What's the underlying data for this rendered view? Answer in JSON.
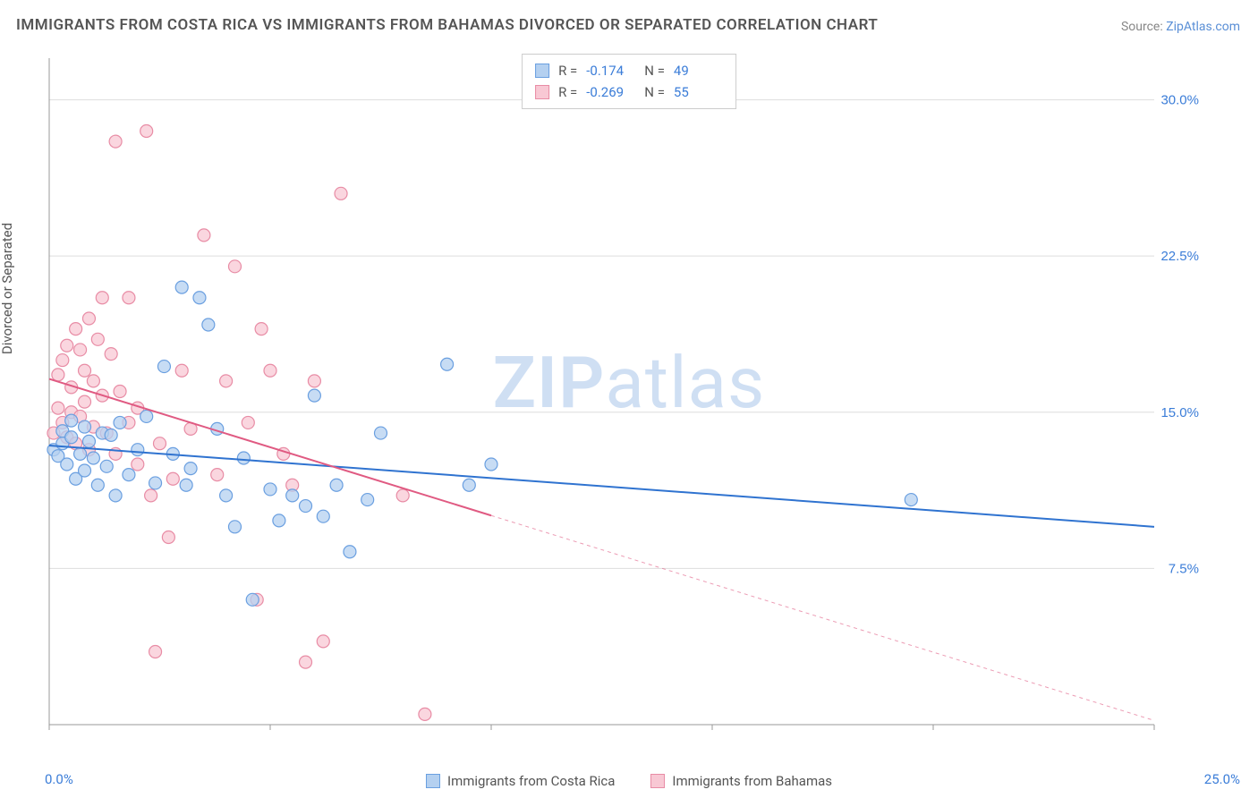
{
  "title": "IMMIGRANTS FROM COSTA RICA VS IMMIGRANTS FROM BAHAMAS DIVORCED OR SEPARATED CORRELATION CHART",
  "source_label": "Source: ",
  "source_value": "ZipAtlas.com",
  "y_axis_label": "Divorced or Separated",
  "watermark_bold": "ZIP",
  "watermark_light": "atlas",
  "chart": {
    "type": "scatter-with-regression",
    "background_color": "#ffffff",
    "plot_border_color": "#999999",
    "grid_color": "#dddddd",
    "xlim": [
      0,
      25
    ],
    "ylim": [
      0,
      32
    ],
    "x_origin_label": "0.0%",
    "x_max_label": "25.0%",
    "x_ticks": [
      0,
      5,
      10,
      15,
      20,
      25
    ],
    "y_ticks": [
      7.5,
      15.0,
      22.5,
      30.0
    ],
    "y_tick_labels": [
      "7.5%",
      "15.0%",
      "22.5%",
      "30.0%"
    ],
    "tick_label_color": "#3b7dd8",
    "tick_label_fontsize": 15,
    "marker_radius": 7,
    "marker_stroke_width": 1.2,
    "series": [
      {
        "id": "costa_rica",
        "label": "Immigrants from Costa Rica",
        "fill_color": "#b4d0f0",
        "stroke_color": "#6a9fe0",
        "r_value": "-0.174",
        "n_value": "49",
        "regression": {
          "x1": 0,
          "y1": 13.4,
          "x2": 25,
          "y2": 9.5,
          "solid_until_x": 25,
          "color": "#2f73d0",
          "width": 2
        },
        "points": [
          [
            0.1,
            13.2
          ],
          [
            0.2,
            12.9
          ],
          [
            0.3,
            13.5
          ],
          [
            0.3,
            14.1
          ],
          [
            0.4,
            12.5
          ],
          [
            0.5,
            13.8
          ],
          [
            0.5,
            14.6
          ],
          [
            0.6,
            11.8
          ],
          [
            0.7,
            13.0
          ],
          [
            0.8,
            14.3
          ],
          [
            0.8,
            12.2
          ],
          [
            0.9,
            13.6
          ],
          [
            1.0,
            12.8
          ],
          [
            1.1,
            11.5
          ],
          [
            1.2,
            14.0
          ],
          [
            1.3,
            12.4
          ],
          [
            1.4,
            13.9
          ],
          [
            1.5,
            11.0
          ],
          [
            1.6,
            14.5
          ],
          [
            1.8,
            12.0
          ],
          [
            2.0,
            13.2
          ],
          [
            2.2,
            14.8
          ],
          [
            2.4,
            11.6
          ],
          [
            2.6,
            17.2
          ],
          [
            2.8,
            13.0
          ],
          [
            3.0,
            21.0
          ],
          [
            3.2,
            12.3
          ],
          [
            3.4,
            20.5
          ],
          [
            3.6,
            19.2
          ],
          [
            3.8,
            14.2
          ],
          [
            4.0,
            11.0
          ],
          [
            4.2,
            9.5
          ],
          [
            4.4,
            12.8
          ],
          [
            4.6,
            6.0
          ],
          [
            5.0,
            11.3
          ],
          [
            5.2,
            9.8
          ],
          [
            5.5,
            11.0
          ],
          [
            5.8,
            10.5
          ],
          [
            6.0,
            15.8
          ],
          [
            6.2,
            10.0
          ],
          [
            6.5,
            11.5
          ],
          [
            6.8,
            8.3
          ],
          [
            7.2,
            10.8
          ],
          [
            7.5,
            14.0
          ],
          [
            9.0,
            17.3
          ],
          [
            9.5,
            11.5
          ],
          [
            10.0,
            12.5
          ],
          [
            19.5,
            10.8
          ],
          [
            3.1,
            11.5
          ]
        ]
      },
      {
        "id": "bahamas",
        "label": "Immigrants from Bahamas",
        "fill_color": "#f8c8d4",
        "stroke_color": "#e88ca5",
        "r_value": "-0.269",
        "n_value": "55",
        "regression": {
          "x1": 0,
          "y1": 16.6,
          "x2": 25,
          "y2": 0.2,
          "solid_until_x": 10,
          "color": "#e05a82",
          "width": 2
        },
        "points": [
          [
            0.1,
            14.0
          ],
          [
            0.2,
            15.2
          ],
          [
            0.2,
            16.8
          ],
          [
            0.3,
            14.5
          ],
          [
            0.3,
            17.5
          ],
          [
            0.4,
            13.8
          ],
          [
            0.4,
            18.2
          ],
          [
            0.5,
            15.0
          ],
          [
            0.5,
            16.2
          ],
          [
            0.6,
            13.5
          ],
          [
            0.6,
            19.0
          ],
          [
            0.7,
            14.8
          ],
          [
            0.7,
            18.0
          ],
          [
            0.8,
            15.5
          ],
          [
            0.8,
            17.0
          ],
          [
            0.9,
            13.2
          ],
          [
            0.9,
            19.5
          ],
          [
            1.0,
            14.3
          ],
          [
            1.0,
            16.5
          ],
          [
            1.1,
            18.5
          ],
          [
            1.2,
            15.8
          ],
          [
            1.3,
            14.0
          ],
          [
            1.4,
            17.8
          ],
          [
            1.5,
            13.0
          ],
          [
            1.5,
            28.0
          ],
          [
            1.6,
            16.0
          ],
          [
            1.8,
            14.5
          ],
          [
            1.8,
            20.5
          ],
          [
            2.0,
            12.5
          ],
          [
            2.0,
            15.2
          ],
          [
            2.2,
            28.5
          ],
          [
            2.3,
            11.0
          ],
          [
            2.5,
            13.5
          ],
          [
            2.7,
            9.0
          ],
          [
            2.8,
            11.8
          ],
          [
            3.0,
            17.0
          ],
          [
            3.2,
            14.2
          ],
          [
            3.5,
            23.5
          ],
          [
            3.8,
            12.0
          ],
          [
            4.0,
            16.5
          ],
          [
            4.2,
            22.0
          ],
          [
            4.5,
            14.5
          ],
          [
            4.7,
            6.0
          ],
          [
            4.8,
            19.0
          ],
          [
            5.0,
            17.0
          ],
          [
            5.3,
            13.0
          ],
          [
            5.5,
            11.5
          ],
          [
            5.8,
            3.0
          ],
          [
            6.0,
            16.5
          ],
          [
            6.2,
            4.0
          ],
          [
            6.6,
            25.5
          ],
          [
            8.0,
            11.0
          ],
          [
            8.5,
            0.5
          ],
          [
            2.4,
            3.5
          ],
          [
            1.2,
            20.5
          ]
        ]
      }
    ]
  },
  "top_legend": {
    "r_label": "R =",
    "n_label": "N ="
  }
}
